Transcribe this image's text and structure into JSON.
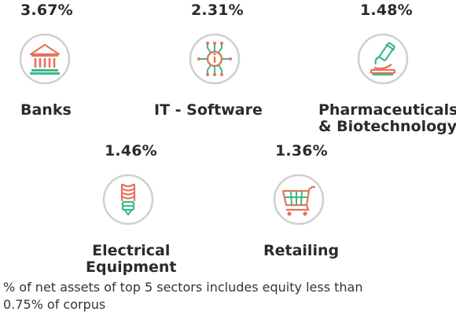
{
  "colors": {
    "accent": "#e8725a",
    "secondary": "#3db889",
    "ring": "#cfcfcf",
    "text": "#2b2b2b"
  },
  "sectors": [
    {
      "percent": "3.67%",
      "name_lines": [
        "Banks"
      ],
      "icon": "bank-icon"
    },
    {
      "percent": "2.31%",
      "name_lines": [
        "IT - Software"
      ],
      "icon": "circuit-chip-icon"
    },
    {
      "percent": "1.48%",
      "name_lines": [
        "Pharmaceuticals",
        "& Biotechnology"
      ],
      "icon": "microscope-icon"
    },
    {
      "percent": "1.46%",
      "name_lines": [
        "Electrical",
        "Equipment"
      ],
      "icon": "light-bulb-icon"
    },
    {
      "percent": "1.36%",
      "name_lines": [
        "Retailing"
      ],
      "icon": "shopping-cart-icon"
    }
  ],
  "footnote": {
    "line1": "% of net assets of top 5 sectors includes equity less than",
    "line2": "0.75% of corpus"
  }
}
